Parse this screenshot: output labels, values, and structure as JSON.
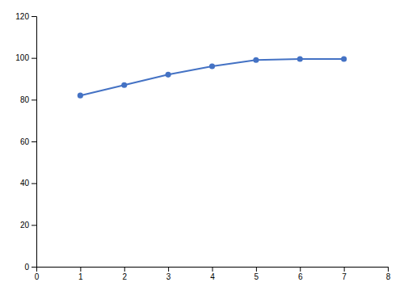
{
  "chart_data": {
    "type": "line",
    "x": [
      1,
      2,
      3,
      4,
      5,
      6,
      7
    ],
    "values": [
      82,
      87,
      92,
      96,
      99,
      99.5,
      99.5
    ],
    "color": "#4472C4",
    "marker": "circle",
    "xlim": [
      0,
      8
    ],
    "ylim": [
      0,
      120
    ],
    "xticks": [
      0,
      1,
      2,
      3,
      4,
      5,
      6,
      7,
      8
    ],
    "yticks": [
      0,
      20,
      40,
      60,
      80,
      100,
      120
    ],
    "grid": false
  }
}
